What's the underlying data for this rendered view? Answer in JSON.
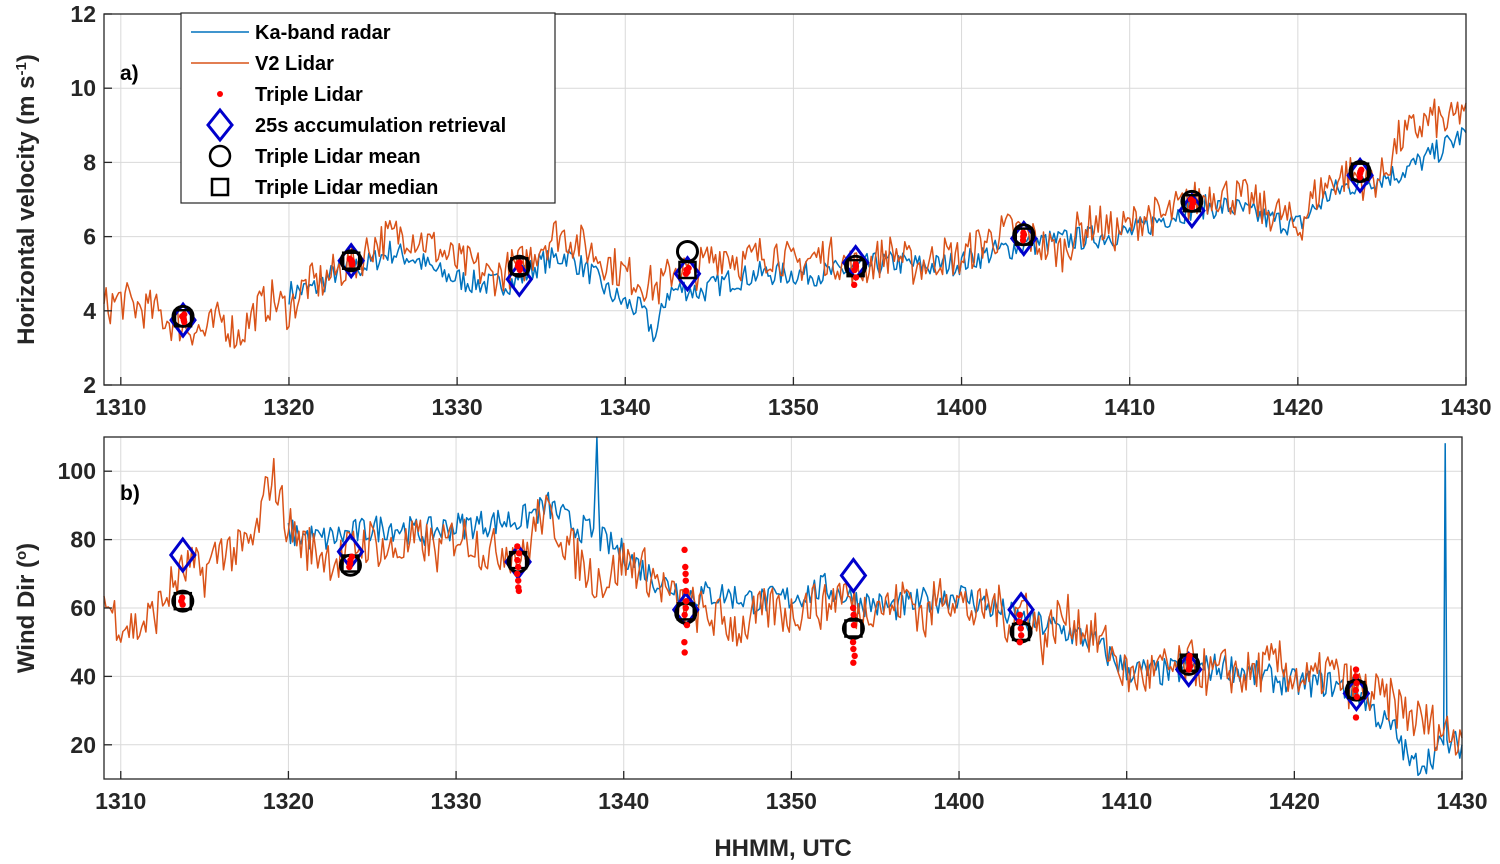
{
  "chart_data": [
    {
      "panel": "a)",
      "type": "line",
      "xlabel": "",
      "ylabel": "Horizontal velocity (m s",
      "ylabel_sup": "-1",
      "ylabel_end": ")",
      "xlim": [
        1309,
        1430
      ],
      "ylim": [
        2,
        12
      ],
      "x_ticks": [
        1310,
        1320,
        1330,
        1340,
        1350,
        1400,
        1410,
        1420,
        1430
      ],
      "y_ticks": [
        2,
        4,
        6,
        8,
        10,
        12
      ],
      "grid": true,
      "legend_position": "top-left",
      "series": [
        {
          "name": "Ka-band radar",
          "color": "#0072BD",
          "x": [
            1320,
            1321.5,
            1323,
            1324.5,
            1326,
            1327.5,
            1329,
            1330.5,
            1332,
            1333.5,
            1335,
            1336.5,
            1338,
            1339,
            1340,
            1341,
            1341.8,
            1342.5,
            1343.5,
            1344.5,
            1346,
            1348,
            1350,
            1352,
            1354,
            1356,
            1358,
            1400,
            1402,
            1404,
            1406,
            1408,
            1410,
            1412,
            1414,
            1416,
            1418,
            1420,
            1422,
            1424,
            1426,
            1428,
            1430
          ],
          "values": [
            4.5,
            4.6,
            5.1,
            5.2,
            5.6,
            5.4,
            5.0,
            4.8,
            4.7,
            4.8,
            5.3,
            5.5,
            5.0,
            4.5,
            4.2,
            4.0,
            3.3,
            4.5,
            4.6,
            4.5,
            4.8,
            5.0,
            5.0,
            5.0,
            5.2,
            5.3,
            5.2,
            5.3,
            5.6,
            5.8,
            5.9,
            6.0,
            6.1,
            6.5,
            6.8,
            6.8,
            6.5,
            6.3,
            7.2,
            7.5,
            7.7,
            8.2,
            8.8
          ]
        },
        {
          "name": "V2 Lidar",
          "color": "#D95319",
          "x": [
            1309,
            1310,
            1311,
            1312,
            1313,
            1314,
            1315,
            1316,
            1317,
            1318,
            1319,
            1320,
            1321,
            1322,
            1323,
            1324,
            1325,
            1326,
            1327,
            1328,
            1329,
            1330,
            1331,
            1332,
            1333,
            1334,
            1335,
            1336,
            1337,
            1338,
            1339,
            1340,
            1341,
            1342,
            1343,
            1344,
            1345,
            1346,
            1347,
            1348,
            1349,
            1350,
            1351,
            1352,
            1353,
            1354,
            1355,
            1356,
            1357,
            1358,
            1359,
            1400,
            1401,
            1402,
            1403,
            1404,
            1405,
            1406,
            1407,
            1408,
            1409,
            1410,
            1411,
            1412,
            1413,
            1414,
            1415,
            1416,
            1417,
            1418,
            1419,
            1420,
            1421,
            1422,
            1423,
            1424,
            1425,
            1426,
            1427,
            1428,
            1429,
            1430
          ],
          "values": [
            4.1,
            4.3,
            4.1,
            4.0,
            3.7,
            3.6,
            3.4,
            3.8,
            3.3,
            4.0,
            4.3,
            4.0,
            4.7,
            4.8,
            5.1,
            5.3,
            5.8,
            6.0,
            6.1,
            5.9,
            5.6,
            5.3,
            5.2,
            4.9,
            5.1,
            5.3,
            5.8,
            6.1,
            5.9,
            5.6,
            5.3,
            5.0,
            4.8,
            4.6,
            5.2,
            5.0,
            5.4,
            5.6,
            5.3,
            5.5,
            5.6,
            5.2,
            5.4,
            5.5,
            5.3,
            5.1,
            5.4,
            5.6,
            5.2,
            5.3,
            5.5,
            5.4,
            5.8,
            6.0,
            6.2,
            6.0,
            5.7,
            5.6,
            6.2,
            6.4,
            6.1,
            6.3,
            6.6,
            6.5,
            6.8,
            7.0,
            7.2,
            7.1,
            7.0,
            6.7,
            6.6,
            6.2,
            7.1,
            7.5,
            7.7,
            7.5,
            7.6,
            8.6,
            8.9,
            9.2,
            9.0,
            9.6
          ]
        }
      ],
      "markers": {
        "times": [
          1313.7,
          1323.7,
          1333.7,
          1343.7,
          1353.7,
          1403.7,
          1413.7,
          1423.7
        ],
        "triple_lidar_label": "Triple Lidar",
        "triple_lidar_color": "#FF0000",
        "triple_lidar_values": [
          [
            3.7,
            3.8,
            3.9,
            3.85,
            3.75
          ],
          [
            5.3,
            5.4,
            5.35,
            5.25
          ],
          [
            5.1,
            5.2,
            5.25,
            5.3,
            5.15
          ],
          [
            5.0,
            5.1,
            5.15,
            5.05
          ],
          [
            5.1,
            5.2,
            4.9,
            4.7,
            5.25
          ],
          [
            5.9,
            6.0,
            6.1,
            6.05
          ],
          [
            6.8,
            6.9,
            7.0,
            6.95
          ],
          [
            7.6,
            7.7,
            7.8,
            7.75
          ]
        ],
        "retrieval_label": "25s accumulation retrieval",
        "retrieval_color": "#0000CC",
        "retrieval_values": [
          3.75,
          5.35,
          4.85,
          5.0,
          5.3,
          5.95,
          6.7,
          7.65
        ],
        "mean_label": "Triple Lidar mean",
        "mean_values": [
          3.85,
          5.35,
          5.2,
          5.6,
          5.2,
          6.05,
          6.95,
          7.75
        ],
        "median_label": "Triple Lidar median",
        "median_values": [
          3.8,
          5.35,
          5.2,
          5.1,
          5.15,
          6.0,
          6.9,
          7.75
        ]
      }
    },
    {
      "panel": "b)",
      "type": "line",
      "xlabel": "HHMM, UTC",
      "ylabel": "Wind Dir (",
      "ylabel_sup": "o",
      "ylabel_end": ")",
      "xlim": [
        1309,
        1430
      ],
      "ylim": [
        10,
        110
      ],
      "x_ticks": [
        1310,
        1320,
        1330,
        1340,
        1350,
        1400,
        1410,
        1420,
        1430
      ],
      "y_ticks": [
        20,
        40,
        60,
        80,
        100
      ],
      "grid": true,
      "series": [
        {
          "name": "Ka-band radar",
          "color": "#0072BD",
          "x": [
            1320,
            1322,
            1324,
            1326,
            1328,
            1330,
            1332,
            1334,
            1335.5,
            1337,
            1338.2,
            1338.4,
            1338.6,
            1340,
            1342,
            1344,
            1346,
            1348,
            1350,
            1352,
            1354,
            1356,
            1358,
            1400,
            1402,
            1404,
            1406,
            1408,
            1410,
            1412,
            1414,
            1416,
            1418,
            1420,
            1422,
            1424,
            1425,
            1426,
            1427,
            1428,
            1428.9,
            1429.0,
            1429.1,
            1430
          ],
          "values": [
            82,
            80,
            82,
            84,
            82,
            84,
            85,
            86,
            90,
            84,
            82,
            108,
            80,
            76,
            68,
            64,
            64,
            62,
            63,
            66,
            62,
            60,
            62,
            64,
            60,
            56,
            54,
            50,
            42,
            41,
            42,
            43,
            40,
            38,
            38,
            35,
            28,
            24,
            14,
            16,
            20,
            108,
            20,
            20
          ]
        },
        {
          "name": "V2 Lidar",
          "color": "#D95319",
          "x": [
            1309,
            1310,
            1311,
            1312,
            1313,
            1314,
            1315,
            1316,
            1317,
            1318,
            1319,
            1320,
            1321,
            1322,
            1323,
            1324,
            1325,
            1326,
            1327,
            1328,
            1329,
            1330,
            1331,
            1332,
            1333,
            1334,
            1335,
            1336,
            1337,
            1338,
            1339,
            1340,
            1341,
            1342,
            1343,
            1344,
            1345,
            1346,
            1347,
            1348,
            1349,
            1350,
            1351,
            1352,
            1353,
            1354,
            1355,
            1356,
            1357,
            1358,
            1359,
            1400,
            1401,
            1402,
            1403,
            1404,
            1405,
            1406,
            1407,
            1408,
            1409,
            1410,
            1411,
            1412,
            1413,
            1414,
            1415,
            1416,
            1417,
            1418,
            1419,
            1420,
            1421,
            1422,
            1423,
            1424,
            1425,
            1426,
            1427,
            1428,
            1429,
            1430
          ],
          "values": [
            62,
            56,
            54,
            58,
            66,
            72,
            70,
            78,
            76,
            80,
            100,
            84,
            78,
            76,
            74,
            78,
            80,
            76,
            78,
            80,
            76,
            82,
            80,
            76,
            78,
            74,
            88,
            84,
            76,
            70,
            68,
            74,
            72,
            68,
            62,
            60,
            58,
            56,
            54,
            58,
            60,
            58,
            62,
            60,
            66,
            58,
            62,
            60,
            64,
            56,
            66,
            62,
            58,
            62,
            56,
            62,
            50,
            58,
            56,
            52,
            48,
            40,
            40,
            42,
            42,
            44,
            40,
            42,
            40,
            42,
            44,
            40,
            38,
            42,
            38,
            36,
            34,
            32,
            28,
            26,
            24,
            22
          ]
        }
      ],
      "markers": {
        "times": [
          1313.7,
          1323.7,
          1333.7,
          1343.7,
          1353.7,
          1403.7,
          1413.7,
          1423.7
        ],
        "triple_lidar_values": [
          [
            62,
            63,
            61
          ],
          [
            72,
            74,
            73,
            75
          ],
          [
            66,
            68,
            70,
            72,
            74,
            76,
            78,
            65
          ],
          [
            47,
            50,
            55,
            58,
            60,
            62,
            65,
            68,
            70,
            72,
            77
          ],
          [
            44,
            46,
            48,
            50,
            55,
            58,
            60
          ],
          [
            50,
            52,
            54,
            56,
            58
          ],
          [
            42,
            43,
            44,
            45,
            46
          ],
          [
            28,
            34,
            36,
            38,
            42,
            40
          ]
        ],
        "retrieval_values": [
          75.5,
          76.5,
          73.5,
          59.5,
          69.5,
          59.5,
          42.0,
          35.0
        ],
        "mean_values": [
          62,
          72.5,
          73.5,
          58.5,
          54,
          53,
          43.5,
          36
        ],
        "median_values": [
          62,
          73,
          74,
          59,
          54,
          53,
          44,
          36
        ]
      }
    }
  ]
}
